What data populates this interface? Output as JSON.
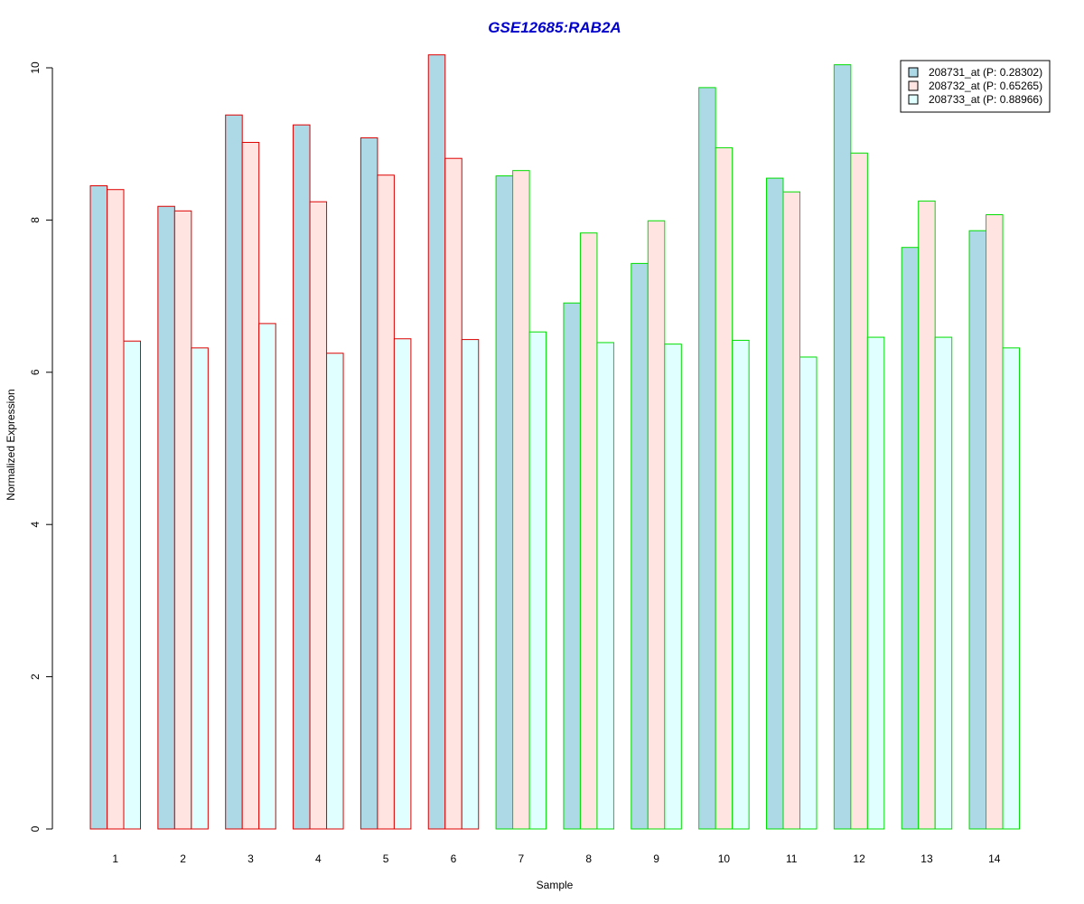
{
  "chart_data": {
    "type": "bar",
    "title": "GSE12685:RAB2A",
    "xlabel": "Sample",
    "ylabel": "Normalized Expression",
    "ylim": [
      0,
      10.2
    ],
    "yticks": [
      0,
      2,
      4,
      6,
      8,
      10
    ],
    "categories": [
      "1",
      "2",
      "3",
      "4",
      "5",
      "6",
      "7",
      "8",
      "9",
      "10",
      "11",
      "12",
      "13",
      "14"
    ],
    "series": [
      {
        "name": "208731_at (P: 0.28302)",
        "fill": "#add8e6",
        "values": [
          8.45,
          8.18,
          9.38,
          9.25,
          9.08,
          10.17,
          8.58,
          6.91,
          7.43,
          9.74,
          8.55,
          10.04,
          7.64,
          7.86
        ]
      },
      {
        "name": "208732_at (P: 0.65265)",
        "fill": "#ffe4e1",
        "values": [
          8.4,
          8.12,
          9.02,
          8.24,
          8.59,
          8.81,
          8.65,
          7.83,
          7.99,
          8.95,
          8.37,
          8.88,
          8.25,
          8.07
        ]
      },
      {
        "name": "208733_at (P: 0.88966)",
        "fill": "#e0ffff",
        "values": [
          6.41,
          6.32,
          6.64,
          6.25,
          6.44,
          6.43,
          6.53,
          6.39,
          6.37,
          6.42,
          6.2,
          6.46,
          6.46,
          6.32
        ]
      }
    ],
    "group_borders": [
      "#dd0000",
      "#dd0000",
      "#dd0000",
      "#dd0000",
      "#dd0000",
      "#dd0000",
      "#00dd00",
      "#00dd00",
      "#00dd00",
      "#00dd00",
      "#00dd00",
      "#00dd00",
      "#00dd00",
      "#00dd00"
    ],
    "title_color": "#0000cc",
    "legend_position": "top-right",
    "grid": false
  }
}
